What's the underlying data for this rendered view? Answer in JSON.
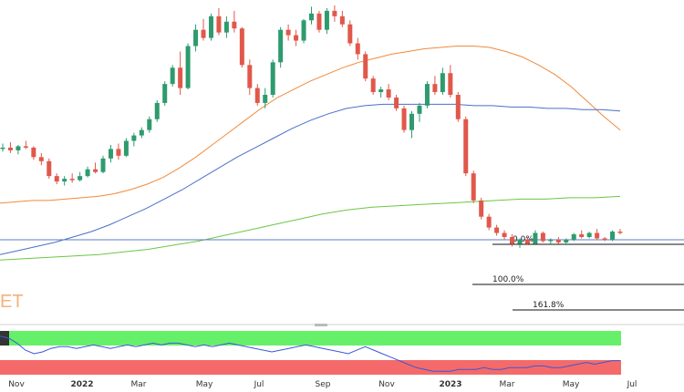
{
  "chart_data": [
    {
      "type": "candlestick",
      "title": "",
      "xlabel": "",
      "ylabel": "",
      "x_ticks": [
        "Nov",
        "2022",
        "Mar",
        "May",
        "Jul",
        "Sep",
        "Nov",
        "2023",
        "Mar",
        "May",
        "Jul"
      ],
      "bold_ticks": [
        "2022",
        "2023"
      ],
      "watermark": "ET",
      "grid": false,
      "colors": {
        "up": "#2e9b6e",
        "down": "#e0584a",
        "ma_fast": "#f08a3c",
        "ma_mid": "#4a6fc9",
        "ma_slow": "#6cc644",
        "hline": "#5b7dc4",
        "fib": "#111111"
      },
      "fibonacci": [
        {
          "label": "0.0%",
          "level": 0.0
        },
        {
          "label": "100.0%",
          "level": 1.0
        },
        {
          "label": "161.8%",
          "level": 1.618
        }
      ],
      "candles": [
        [
          100,
          104,
          98,
          101
        ],
        [
          101,
          105,
          97,
          99
        ],
        [
          99,
          103,
          96,
          102
        ],
        [
          102,
          106,
          100,
          101
        ],
        [
          101,
          102,
          92,
          94
        ],
        [
          94,
          97,
          88,
          91
        ],
        [
          91,
          93,
          78,
          80
        ],
        [
          80,
          82,
          74,
          76
        ],
        [
          76,
          80,
          73,
          78
        ],
        [
          78,
          82,
          75,
          77
        ],
        [
          77,
          83,
          76,
          80
        ],
        [
          80,
          87,
          79,
          85
        ],
        [
          85,
          90,
          82,
          83
        ],
        [
          83,
          95,
          82,
          93
        ],
        [
          93,
          103,
          90,
          100
        ],
        [
          100,
          104,
          92,
          95
        ],
        [
          95,
          108,
          94,
          106
        ],
        [
          106,
          112,
          102,
          110
        ],
        [
          110,
          116,
          108,
          114
        ],
        [
          114,
          124,
          112,
          122
        ],
        [
          122,
          136,
          120,
          134
        ],
        [
          134,
          150,
          132,
          148
        ],
        [
          148,
          162,
          146,
          160
        ],
        [
          160,
          172,
          140,
          145
        ],
        [
          145,
          178,
          144,
          176
        ],
        [
          176,
          192,
          172,
          188
        ],
        [
          188,
          196,
          180,
          182
        ],
        [
          182,
          200,
          180,
          198
        ],
        [
          198,
          204,
          184,
          186
        ],
        [
          186,
          198,
          182,
          194
        ],
        [
          194,
          202,
          186,
          189
        ],
        [
          189,
          190,
          160,
          162
        ],
        [
          162,
          166,
          140,
          145
        ],
        [
          145,
          148,
          132,
          134
        ],
        [
          134,
          145,
          130,
          140
        ],
        [
          140,
          166,
          138,
          164
        ],
        [
          164,
          190,
          160,
          188
        ],
        [
          188,
          192,
          180,
          184
        ],
        [
          184,
          188,
          176,
          180
        ],
        [
          180,
          196,
          178,
          195
        ],
        [
          195,
          205,
          192,
          200
        ],
        [
          200,
          202,
          186,
          188
        ],
        [
          188,
          204,
          185,
          202
        ],
        [
          202,
          206,
          194,
          198
        ],
        [
          198,
          202,
          190,
          192
        ],
        [
          192,
          195,
          176,
          178
        ],
        [
          178,
          182,
          166,
          170
        ],
        [
          170,
          172,
          150,
          152
        ],
        [
          152,
          154,
          140,
          142
        ],
        [
          142,
          146,
          138,
          144
        ],
        [
          144,
          148,
          136,
          138
        ],
        [
          138,
          140,
          128,
          130
        ],
        [
          130,
          132,
          112,
          114
        ],
        [
          114,
          128,
          108,
          126
        ],
        [
          126,
          134,
          120,
          132
        ],
        [
          132,
          150,
          130,
          148
        ],
        [
          148,
          154,
          140,
          142
        ],
        [
          142,
          160,
          140,
          156
        ],
        [
          156,
          162,
          138,
          140
        ],
        [
          140,
          142,
          120,
          122
        ],
        [
          122,
          124,
          80,
          82
        ],
        [
          82,
          84,
          60,
          62
        ],
        [
          62,
          64,
          48,
          50
        ],
        [
          50,
          52,
          40,
          42
        ],
        [
          42,
          44,
          36,
          38
        ],
        [
          38,
          40,
          33,
          35
        ],
        [
          35,
          37,
          28,
          30
        ],
        [
          30,
          34,
          27,
          33
        ],
        [
          33,
          35,
          29,
          30
        ],
        [
          30,
          40,
          29,
          38
        ],
        [
          38,
          39,
          31,
          32
        ],
        [
          32,
          34,
          29,
          33
        ],
        [
          33,
          35,
          30,
          31
        ],
        [
          31,
          34,
          29,
          33
        ],
        [
          33,
          38,
          32,
          37
        ],
        [
          37,
          40,
          34,
          35
        ],
        [
          35,
          39,
          34,
          38
        ],
        [
          38,
          41,
          33,
          34
        ],
        [
          34,
          35,
          32,
          33
        ],
        [
          33,
          40,
          32,
          39
        ],
        [
          39,
          41,
          37,
          38
        ]
      ],
      "ma_fast": [
        60,
        61,
        62,
        62,
        63,
        64,
        65,
        67,
        70,
        74,
        79,
        86,
        94,
        103,
        112,
        121,
        130,
        138,
        144,
        150,
        155,
        160,
        164,
        167,
        170,
        172,
        174,
        175,
        176,
        176,
        175,
        172,
        168,
        162,
        155,
        146,
        135,
        124,
        114
      ],
      "ma_mid": [
        22,
        25,
        28,
        31,
        35,
        39,
        44,
        50,
        56,
        63,
        70,
        78,
        86,
        94,
        101,
        108,
        115,
        121,
        126,
        130,
        132,
        133,
        133,
        133,
        133,
        133,
        132,
        132,
        131,
        131,
        130,
        130,
        129,
        129,
        128
      ],
      "ma_slow": [
        18,
        19,
        20,
        21,
        22,
        24,
        26,
        29,
        32,
        36,
        40,
        44,
        48,
        52,
        55,
        57,
        58,
        59,
        60,
        61,
        62,
        63,
        63,
        64,
        64,
        65
      ],
      "hline_value": 33
    },
    {
      "type": "line",
      "title": "",
      "oscillator": true,
      "zones": {
        "overbought": "#66f06a",
        "oversold": "#f46a6a"
      },
      "values": [
        92,
        91,
        88,
        84,
        82,
        83,
        85,
        86,
        86,
        85,
        86,
        87,
        86,
        85,
        86,
        87,
        86,
        87,
        88,
        87,
        88,
        88,
        87,
        86,
        87,
        86,
        87,
        88,
        87,
        86,
        85,
        84,
        83,
        84,
        85,
        86,
        87,
        86,
        85,
        84,
        83,
        82,
        84,
        86,
        84,
        82,
        80,
        78,
        76,
        74,
        73,
        72,
        72,
        72,
        73,
        73,
        73,
        74,
        73,
        73,
        74,
        74,
        74,
        75,
        75,
        74,
        74,
        75,
        76,
        77,
        76,
        77,
        78,
        78
      ]
    }
  ]
}
